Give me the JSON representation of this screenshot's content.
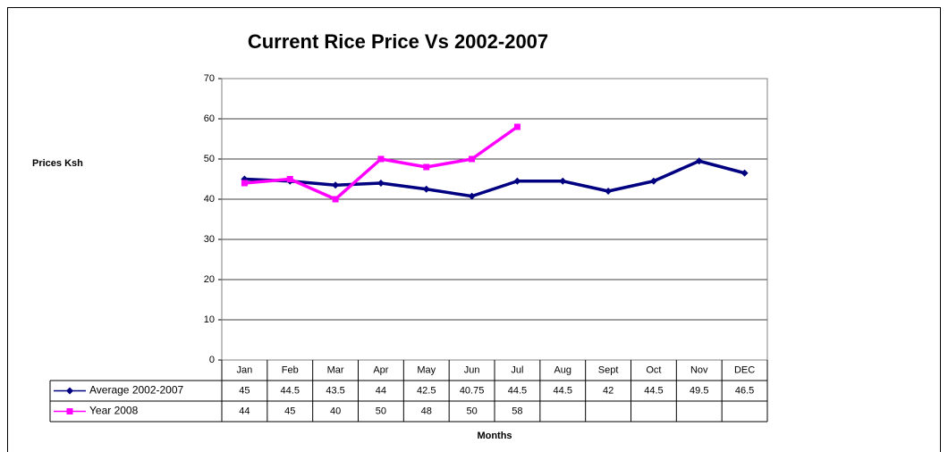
{
  "chart_data": {
    "type": "line",
    "title": "Current Rice Price Vs 2002-2007",
    "y_label": "Prices Ksh",
    "x_label": "Months",
    "categories": [
      "Jan",
      "Feb",
      "Mar",
      "Apr",
      "May",
      "Jun",
      "Jul",
      "Aug",
      "Sept",
      "Oct",
      "Nov",
      "DEC"
    ],
    "series": [
      {
        "name": "Average 2002-2007",
        "color": "#000080",
        "marker": "diamond",
        "values": [
          45,
          44.5,
          43.5,
          44,
          42.5,
          40.75,
          44.5,
          44.5,
          42,
          44.5,
          49.5,
          46.5
        ]
      },
      {
        "name": "Year 2008",
        "color": "#ff00ff",
        "marker": "square",
        "values": [
          44,
          45,
          40,
          50,
          48,
          50,
          58,
          null,
          null,
          null,
          null,
          null
        ]
      }
    ],
    "ylim": [
      0,
      70
    ],
    "yticks": [
      0,
      10,
      20,
      30,
      40,
      50,
      60,
      70
    ],
    "grid": true,
    "data_table": true
  }
}
